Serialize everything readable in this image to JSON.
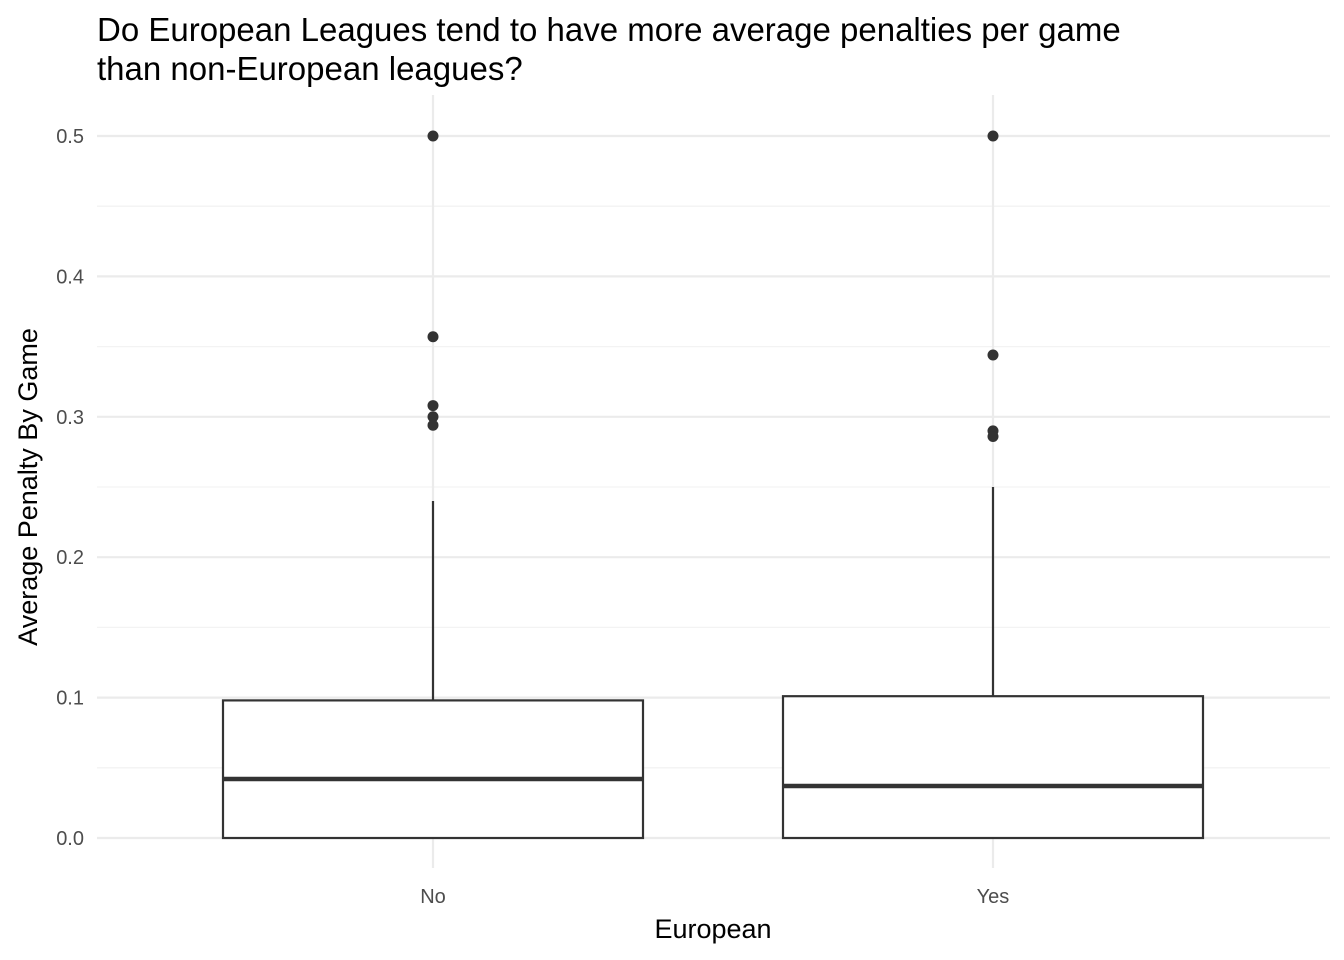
{
  "chart_data": {
    "type": "boxplot",
    "title_line1": "Do European Leagues tend to have more average penalties per game",
    "title_line2": "than non-European leagues?",
    "xlabel": "European",
    "ylabel": "Average Penalty By Game",
    "categories": [
      "No",
      "Yes"
    ],
    "ylim": [
      -0.02,
      0.525
    ],
    "yticks": [
      0.0,
      0.1,
      0.2,
      0.3,
      0.4,
      0.5
    ],
    "ytick_labels": [
      "0.0",
      "0.1",
      "0.2",
      "0.3",
      "0.4",
      "0.5"
    ],
    "grid": true,
    "boxes": [
      {
        "category": "No",
        "min": 0.0,
        "q1": 0.0,
        "median": 0.042,
        "q3": 0.098,
        "whisker_high": 0.24,
        "outliers": [
          0.5,
          0.357,
          0.308,
          0.3,
          0.294
        ]
      },
      {
        "category": "Yes",
        "min": 0.0,
        "q1": 0.0,
        "median": 0.037,
        "q3": 0.101,
        "whisker_high": 0.25,
        "outliers": [
          0.5,
          0.344,
          0.29,
          0.286
        ]
      }
    ],
    "colors": {
      "box_stroke": "#333333",
      "grid_major": "#ebebeb",
      "grid_minor": "#f3f3f3",
      "tick_text": "#4d4d4d"
    }
  }
}
